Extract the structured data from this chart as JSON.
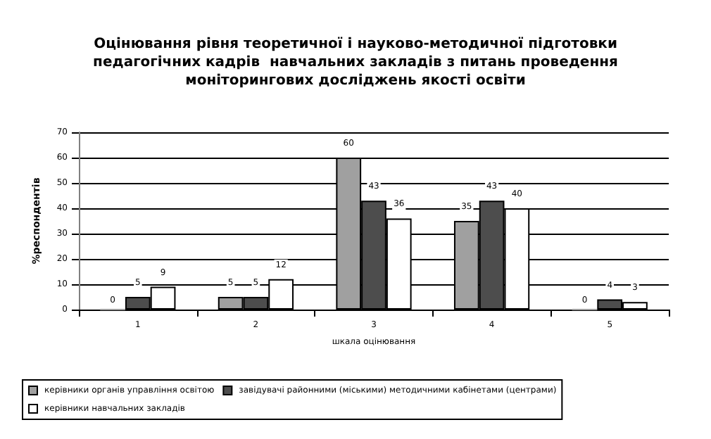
{
  "chart_data": {
    "type": "bar",
    "title": "Оцінювання рівня теоретичної і науково-методичної підготовки\nпедагогічних кадрів  навчальних закладів з питань проведення\nмоніторингових досліджень якості освіти",
    "xlabel": "шкала оцінювання",
    "ylabel": "%респондентів",
    "categories": [
      "1",
      "2",
      "3",
      "4",
      "5"
    ],
    "series": [
      {
        "name": "керівники органів управління освітою",
        "color": "#a0a0a0",
        "values": [
          0,
          5,
          60,
          35,
          0
        ]
      },
      {
        "name": "завідувачі районними (міськими) методичними кабінетами (центрами)",
        "color": "#4d4d4d",
        "values": [
          5,
          5,
          43,
          43,
          4
        ]
      },
      {
        "name": "керівники навчальних закладів",
        "color": "#ffffff",
        "values": [
          9,
          12,
          36,
          40,
          3
        ]
      }
    ],
    "ylim": [
      0,
      70
    ],
    "yticks": [
      0,
      10,
      20,
      30,
      40,
      50,
      60,
      70
    ],
    "grid": "y",
    "legend": "bottom",
    "data_labels": true
  }
}
